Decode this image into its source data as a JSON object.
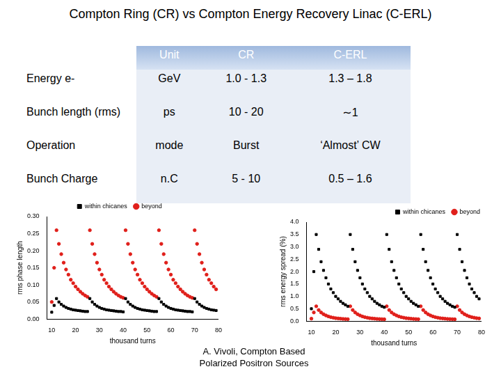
{
  "title": "Compton Ring (CR) vs Compton Energy Recovery Linac (C-ERL)",
  "table": {
    "header": [
      "",
      "Unit",
      "CR",
      "C-ERL"
    ],
    "rows": [
      [
        "Energy e-",
        "GeV",
        "1.0 - 1.3",
        "1.3 – 1.8"
      ],
      [
        "Bunch length (rms)",
        "ps",
        "10 - 20",
        "∼1"
      ],
      [
        "Operation",
        "mode",
        "Burst",
        "‘Almost’ CW"
      ],
      [
        "Bunch Charge",
        "n.C",
        "5 - 10",
        "0.5 – 1.6"
      ]
    ]
  },
  "footer": [
    "A. Vivoli, Compton Based",
    "Polarized Positron Sources"
  ],
  "chart_data": [
    {
      "type": "scatter",
      "x_label": "thousand turns",
      "y_label": "rms phase length",
      "x": [
        10,
        11,
        12,
        13,
        14,
        15,
        16,
        17,
        18,
        19,
        20,
        21,
        22,
        23,
        24,
        25,
        26,
        27,
        28,
        29,
        30,
        31,
        32,
        33,
        34,
        35,
        36,
        37,
        38,
        39,
        40,
        41,
        42,
        43,
        44,
        45,
        46,
        47,
        48,
        49,
        50,
        51,
        52,
        53,
        54,
        55,
        56,
        57,
        58,
        59,
        60,
        61,
        62,
        63,
        64,
        65,
        66,
        67,
        68,
        69,
        70,
        71,
        72,
        73,
        74,
        75,
        76,
        77,
        78,
        79
      ],
      "series": [
        {
          "name": "within chicanes",
          "color": "#000000",
          "marker": "square",
          "values": [
            0.02,
            0.04,
            0.06,
            0.05,
            0.043,
            0.038,
            0.034,
            0.031,
            0.029,
            0.027,
            0.026,
            0.025,
            0.024,
            0.023,
            0.022,
            0.022,
            0.06,
            0.05,
            0.043,
            0.038,
            0.034,
            0.031,
            0.029,
            0.027,
            0.026,
            0.025,
            0.024,
            0.023,
            0.022,
            0.022,
            0.021,
            0.06,
            0.05,
            0.043,
            0.038,
            0.034,
            0.031,
            0.029,
            0.027,
            0.026,
            0.025,
            0.024,
            0.023,
            0.022,
            0.022,
            0.06,
            0.05,
            0.043,
            0.038,
            0.034,
            0.031,
            0.029,
            0.027,
            0.026,
            0.025,
            0.024,
            0.023,
            0.022,
            0.022,
            0.021,
            0.06,
            0.05,
            0.043,
            0.038,
            0.034,
            0.031,
            0.029,
            0.027,
            0.026,
            0.025
          ]
        },
        {
          "name": "beyond",
          "color": "#e0201b",
          "marker": "circle",
          "values": [
            0.05,
            0.15,
            0.26,
            0.22,
            0.19,
            0.165,
            0.145,
            0.13,
            0.115,
            0.105,
            0.095,
            0.087,
            0.08,
            0.074,
            0.069,
            0.065,
            0.26,
            0.22,
            0.19,
            0.165,
            0.145,
            0.13,
            0.115,
            0.105,
            0.095,
            0.087,
            0.08,
            0.074,
            0.069,
            0.065,
            0.062,
            0.26,
            0.22,
            0.19,
            0.165,
            0.145,
            0.13,
            0.115,
            0.105,
            0.095,
            0.087,
            0.08,
            0.074,
            0.069,
            0.065,
            0.26,
            0.22,
            0.19,
            0.165,
            0.145,
            0.13,
            0.115,
            0.105,
            0.095,
            0.087,
            0.08,
            0.074,
            0.069,
            0.065,
            0.062,
            0.26,
            0.22,
            0.19,
            0.165,
            0.145,
            0.13,
            0.115,
            0.105,
            0.095,
            0.087
          ]
        }
      ],
      "xlim": [
        8,
        80
      ],
      "xticks": [
        10,
        20,
        30,
        40,
        50,
        60,
        70,
        80
      ],
      "ylim": [
        0,
        0.3
      ],
      "yticks": [
        {
          "value": 0,
          "label": "0.00"
        },
        {
          "value": 0.05,
          "label": "0.05"
        },
        {
          "value": 0.1,
          "label": "0.10"
        },
        {
          "value": 0.15,
          "label": "0.15"
        },
        {
          "value": 0.2,
          "label": "0.20"
        },
        {
          "value": 0.25,
          "label": "0.25"
        },
        {
          "value": 0.3,
          "label": "0.30"
        }
      ],
      "grid": false,
      "legend": "upper center"
    },
    {
      "type": "scatter",
      "x_label": "thousand turns",
      "y_label": "rms energy spread (%)",
      "x": [
        10,
        11,
        12,
        13,
        14,
        15,
        16,
        17,
        18,
        19,
        20,
        21,
        22,
        23,
        24,
        25,
        26,
        27,
        28,
        29,
        30,
        31,
        32,
        33,
        34,
        35,
        36,
        37,
        38,
        39,
        40,
        41,
        42,
        43,
        44,
        45,
        46,
        47,
        48,
        49,
        50,
        51,
        52,
        53,
        54,
        55,
        56,
        57,
        58,
        59,
        60,
        61,
        62,
        63,
        64,
        65,
        66,
        67,
        68,
        69,
        70,
        71,
        72,
        73,
        74,
        75,
        76,
        77,
        78,
        79
      ],
      "series": [
        {
          "name": "within chicanes",
          "color": "#000000",
          "marker": "square",
          "values": [
            0.5,
            2.0,
            3.5,
            2.9,
            2.4,
            2.05,
            1.75,
            1.5,
            1.3,
            1.15,
            1.0,
            0.9,
            0.8,
            0.72,
            0.66,
            0.6,
            3.5,
            2.9,
            2.4,
            2.05,
            1.75,
            1.5,
            1.3,
            1.15,
            1.0,
            0.9,
            0.8,
            0.72,
            0.66,
            0.6,
            0.56,
            3.5,
            2.9,
            2.4,
            2.05,
            1.75,
            1.5,
            1.3,
            1.15,
            1.0,
            0.9,
            0.8,
            0.72,
            0.66,
            0.6,
            3.5,
            2.9,
            2.4,
            2.05,
            1.75,
            1.5,
            1.3,
            1.15,
            1.0,
            0.9,
            0.8,
            0.72,
            0.66,
            0.6,
            0.56,
            3.5,
            2.9,
            2.4,
            2.05,
            1.75,
            1.5,
            1.3,
            1.15,
            1.0,
            0.9
          ]
        },
        {
          "name": "beyond",
          "color": "#e0201b",
          "marker": "circle",
          "values": [
            0.1,
            0.35,
            0.6,
            0.45,
            0.35,
            0.28,
            0.23,
            0.19,
            0.16,
            0.14,
            0.12,
            0.11,
            0.1,
            0.09,
            0.085,
            0.08,
            0.6,
            0.45,
            0.35,
            0.28,
            0.23,
            0.19,
            0.16,
            0.14,
            0.12,
            0.11,
            0.1,
            0.09,
            0.085,
            0.08,
            0.075,
            0.6,
            0.45,
            0.35,
            0.28,
            0.23,
            0.19,
            0.16,
            0.14,
            0.12,
            0.11,
            0.1,
            0.09,
            0.085,
            0.08,
            0.6,
            0.45,
            0.35,
            0.28,
            0.23,
            0.19,
            0.16,
            0.14,
            0.12,
            0.11,
            0.1,
            0.09,
            0.085,
            0.08,
            0.075,
            0.6,
            0.45,
            0.35,
            0.28,
            0.23,
            0.19,
            0.16,
            0.14,
            0.12,
            0.11
          ]
        }
      ],
      "xlim": [
        8,
        80
      ],
      "xticks": [
        10,
        20,
        30,
        40,
        50,
        60,
        70,
        80
      ],
      "ylim": [
        0,
        4
      ],
      "yticks": [
        {
          "value": 0,
          "label": "0.0"
        },
        {
          "value": 0.5,
          "label": "0.5"
        },
        {
          "value": 1,
          "label": "1.0"
        },
        {
          "value": 1.5,
          "label": "1.5"
        },
        {
          "value": 2,
          "label": "2.0"
        },
        {
          "value": 2.5,
          "label": "2.5"
        },
        {
          "value": 3,
          "label": "3.0"
        },
        {
          "value": 3.5,
          "label": "3.5"
        },
        {
          "value": 4,
          "label": "4.0"
        }
      ],
      "grid": false,
      "legend": "upper right"
    }
  ]
}
